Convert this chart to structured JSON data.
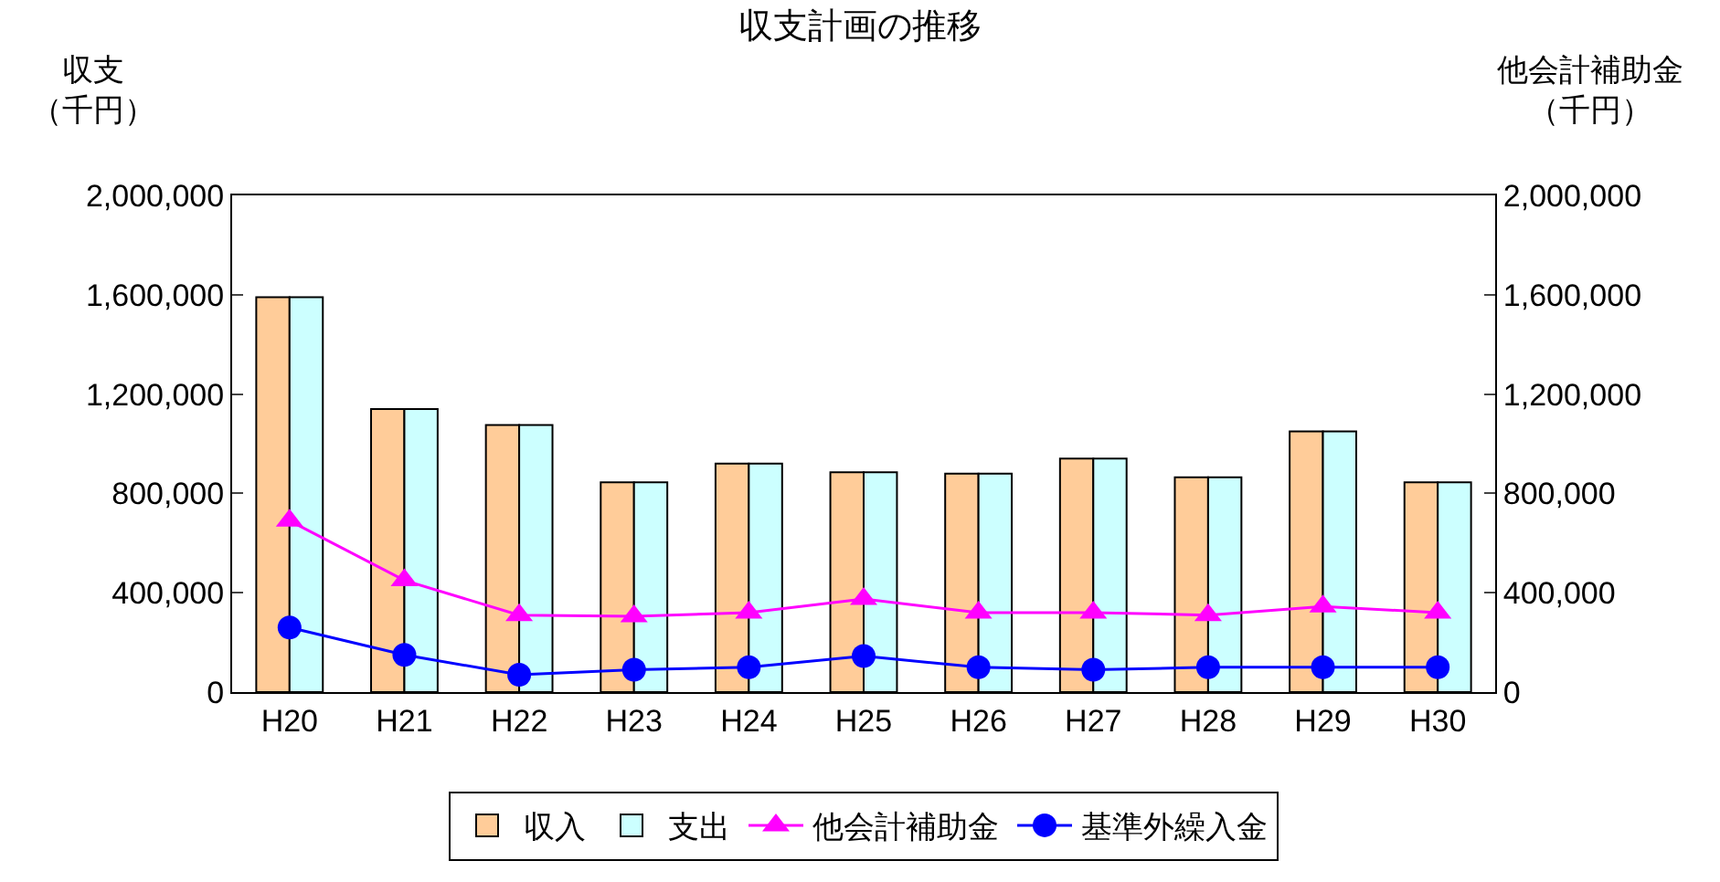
{
  "chart_data": {
    "type": "bar",
    "title": "収支計画の推移",
    "ylabel": "収支（千円）",
    "y2label": "他会計補助金（千円）",
    "categories": [
      "H20",
      "H21",
      "H22",
      "H23",
      "H24",
      "H25",
      "H26",
      "H27",
      "H28",
      "H29",
      "H30"
    ],
    "series": [
      {
        "name": "収入",
        "color": "#ffcc99",
        "values": [
          1590000,
          1140000,
          1075000,
          845000,
          920000,
          885000,
          880000,
          940000,
          865000,
          1050000,
          845000
        ]
      },
      {
        "name": "支出",
        "color": "#ccffff",
        "values": [
          1590000,
          1140000,
          1075000,
          845000,
          920000,
          885000,
          880000,
          940000,
          865000,
          1050000,
          845000
        ]
      },
      {
        "name": "他会計補助金",
        "type": "line",
        "axis": "y2",
        "marker": "triangle",
        "color": "#ff00ff",
        "values": [
          690000,
          450000,
          310000,
          305000,
          320000,
          375000,
          320000,
          320000,
          310000,
          345000,
          320000
        ]
      },
      {
        "name": "基準外繰入金",
        "type": "line",
        "axis": "y2",
        "marker": "circle",
        "color": "#0000ff",
        "values": [
          260000,
          150000,
          70000,
          90000,
          100000,
          145000,
          100000,
          90000,
          100000,
          100000,
          100000
        ]
      }
    ],
    "ylim": [
      0,
      2000000
    ],
    "yticks": [
      {
        "value": 0,
        "label": "0"
      },
      {
        "value": 400000,
        "label": "400,000"
      },
      {
        "value": 800000,
        "label": "800,000"
      },
      {
        "value": 1200000,
        "label": "1,200,000"
      },
      {
        "value": 1600000,
        "label": "1,600,000"
      },
      {
        "value": 2000000,
        "label": "2,000,000"
      }
    ],
    "y2lim": [
      0,
      2000000
    ],
    "y2ticks": [
      {
        "value": 0,
        "label": "0"
      },
      {
        "value": 400000,
        "label": "400,000"
      },
      {
        "value": 800000,
        "label": "800,000"
      },
      {
        "value": 1200000,
        "label": "1,200,000"
      },
      {
        "value": 1600000,
        "label": "1,600,000"
      },
      {
        "value": 2000000,
        "label": "2,000,000"
      }
    ],
    "grid": false,
    "legend": "bottom"
  }
}
